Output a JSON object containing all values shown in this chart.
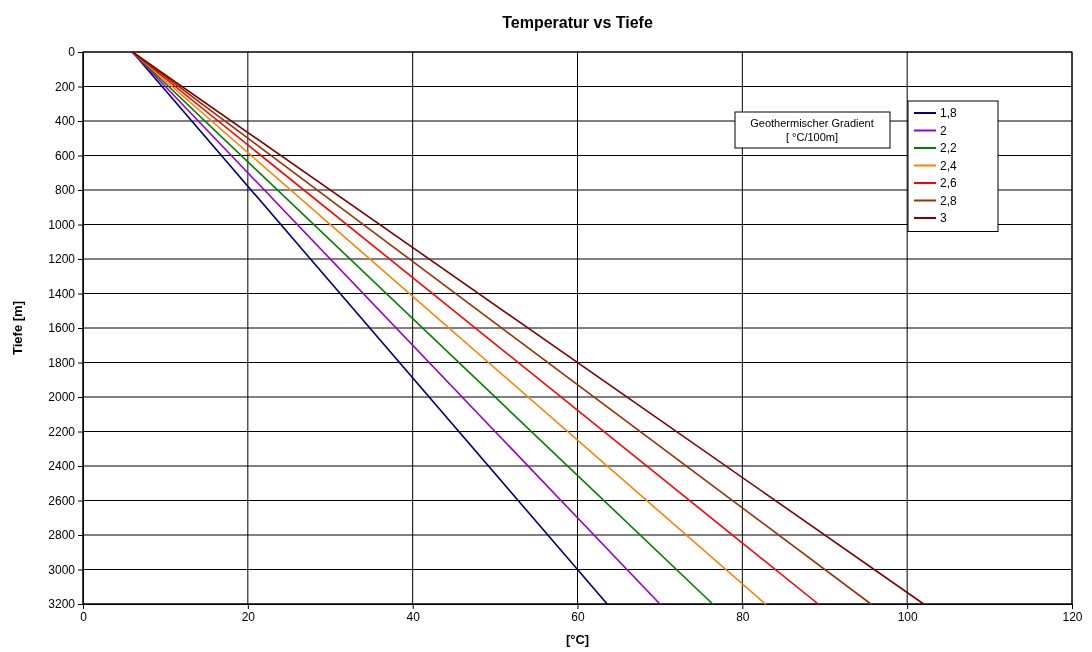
{
  "chart_data": {
    "type": "line",
    "title": "Temperatur vs Tiefe",
    "xlabel": "[°C]",
    "ylabel": "Tiefe [m]",
    "legend_title": "Geothermischer Gradient\n[ °C/100m]",
    "xlim": [
      0,
      120
    ],
    "xticks": [
      0,
      20,
      40,
      60,
      80,
      100,
      120
    ],
    "ylim": [
      3200,
      0
    ],
    "yticks": [
      0,
      200,
      400,
      600,
      800,
      1000,
      1200,
      1400,
      1600,
      1800,
      2000,
      2200,
      2400,
      2600,
      2800,
      3000,
      3200
    ],
    "grid": true,
    "legend": "top right",
    "marker": "none",
    "line_style": "solid",
    "series": [
      {
        "name": "1,8",
        "color": "#000080",
        "x": [
          6,
          63.6
        ],
        "values": [
          0,
          3200
        ]
      },
      {
        "name": "2",
        "color": "#9900cc",
        "x": [
          6,
          70
        ],
        "values": [
          0,
          3200
        ]
      },
      {
        "name": "2,2",
        "color": "#008000",
        "x": [
          6,
          76.4
        ],
        "values": [
          0,
          3200
        ]
      },
      {
        "name": "2,4",
        "color": "#ff8000",
        "x": [
          6,
          82.8
        ],
        "values": [
          0,
          3200
        ]
      },
      {
        "name": "2,6",
        "color": "#ff0000",
        "x": [
          6,
          89.2
        ],
        "values": [
          0,
          3200
        ]
      },
      {
        "name": "2,8",
        "color": "#993300",
        "x": [
          6,
          95.6
        ],
        "values": [
          0,
          3200
        ]
      },
      {
        "name": "3",
        "color": "#800000",
        "x": [
          6,
          102
        ],
        "values": [
          0,
          3200
        ]
      }
    ]
  }
}
